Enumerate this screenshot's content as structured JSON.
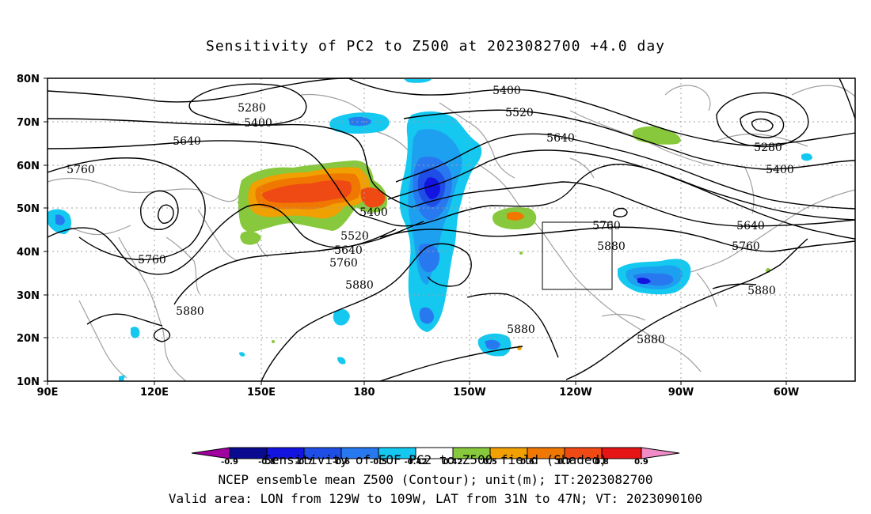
{
  "title": "Sensitivity of PC2 to Z500 at 2023082700 +4.0 day",
  "y_ticks": [
    "80N",
    "70N",
    "60N",
    "50N",
    "40N",
    "30N",
    "20N",
    "10N"
  ],
  "x_ticks": [
    "90E",
    "120E",
    "150E",
    "180",
    "150W",
    "120W",
    "90W",
    "60W"
  ],
  "contour_labels": [
    "5280",
    "5400",
    "5640",
    "5760",
    "5400",
    "5520",
    "5640",
    "5760",
    "5880",
    "5760",
    "5880",
    "5400",
    "5520",
    "5640",
    "5760",
    "5880",
    "5880",
    "5280",
    "5400",
    "5640",
    "5760",
    "5880"
  ],
  "colorbar": {
    "ticks": [
      "-0.9",
      "-0.8",
      "-0.7",
      "-0.6",
      "-0.5",
      "-0.42",
      "0.42",
      "0.5",
      "0.6",
      "0.7",
      "0.8",
      "0.9"
    ],
    "colors": [
      "#0a0a90",
      "#1414e0",
      "#1e4ee6",
      "#2878f0",
      "#1ea0f0",
      "#14c8f0",
      "#ffffff",
      "#88c83c",
      "#f0a000",
      "#f07800",
      "#f04a14",
      "#e61414",
      "#f08cc8"
    ],
    "low_end_color": "#a000a0",
    "high_end_color": "#f08cc8"
  },
  "caption": {
    "line1": "Sensitivity of EOF PC2 to Z500 field (Shaded)",
    "line2": "NCEP ensemble mean Z500 (Contour); unit(m); IT:2023082700",
    "line3": "Valid area: LON from 129W to 109W, LAT from 31N to 47N; VT: 2023090100"
  }
}
